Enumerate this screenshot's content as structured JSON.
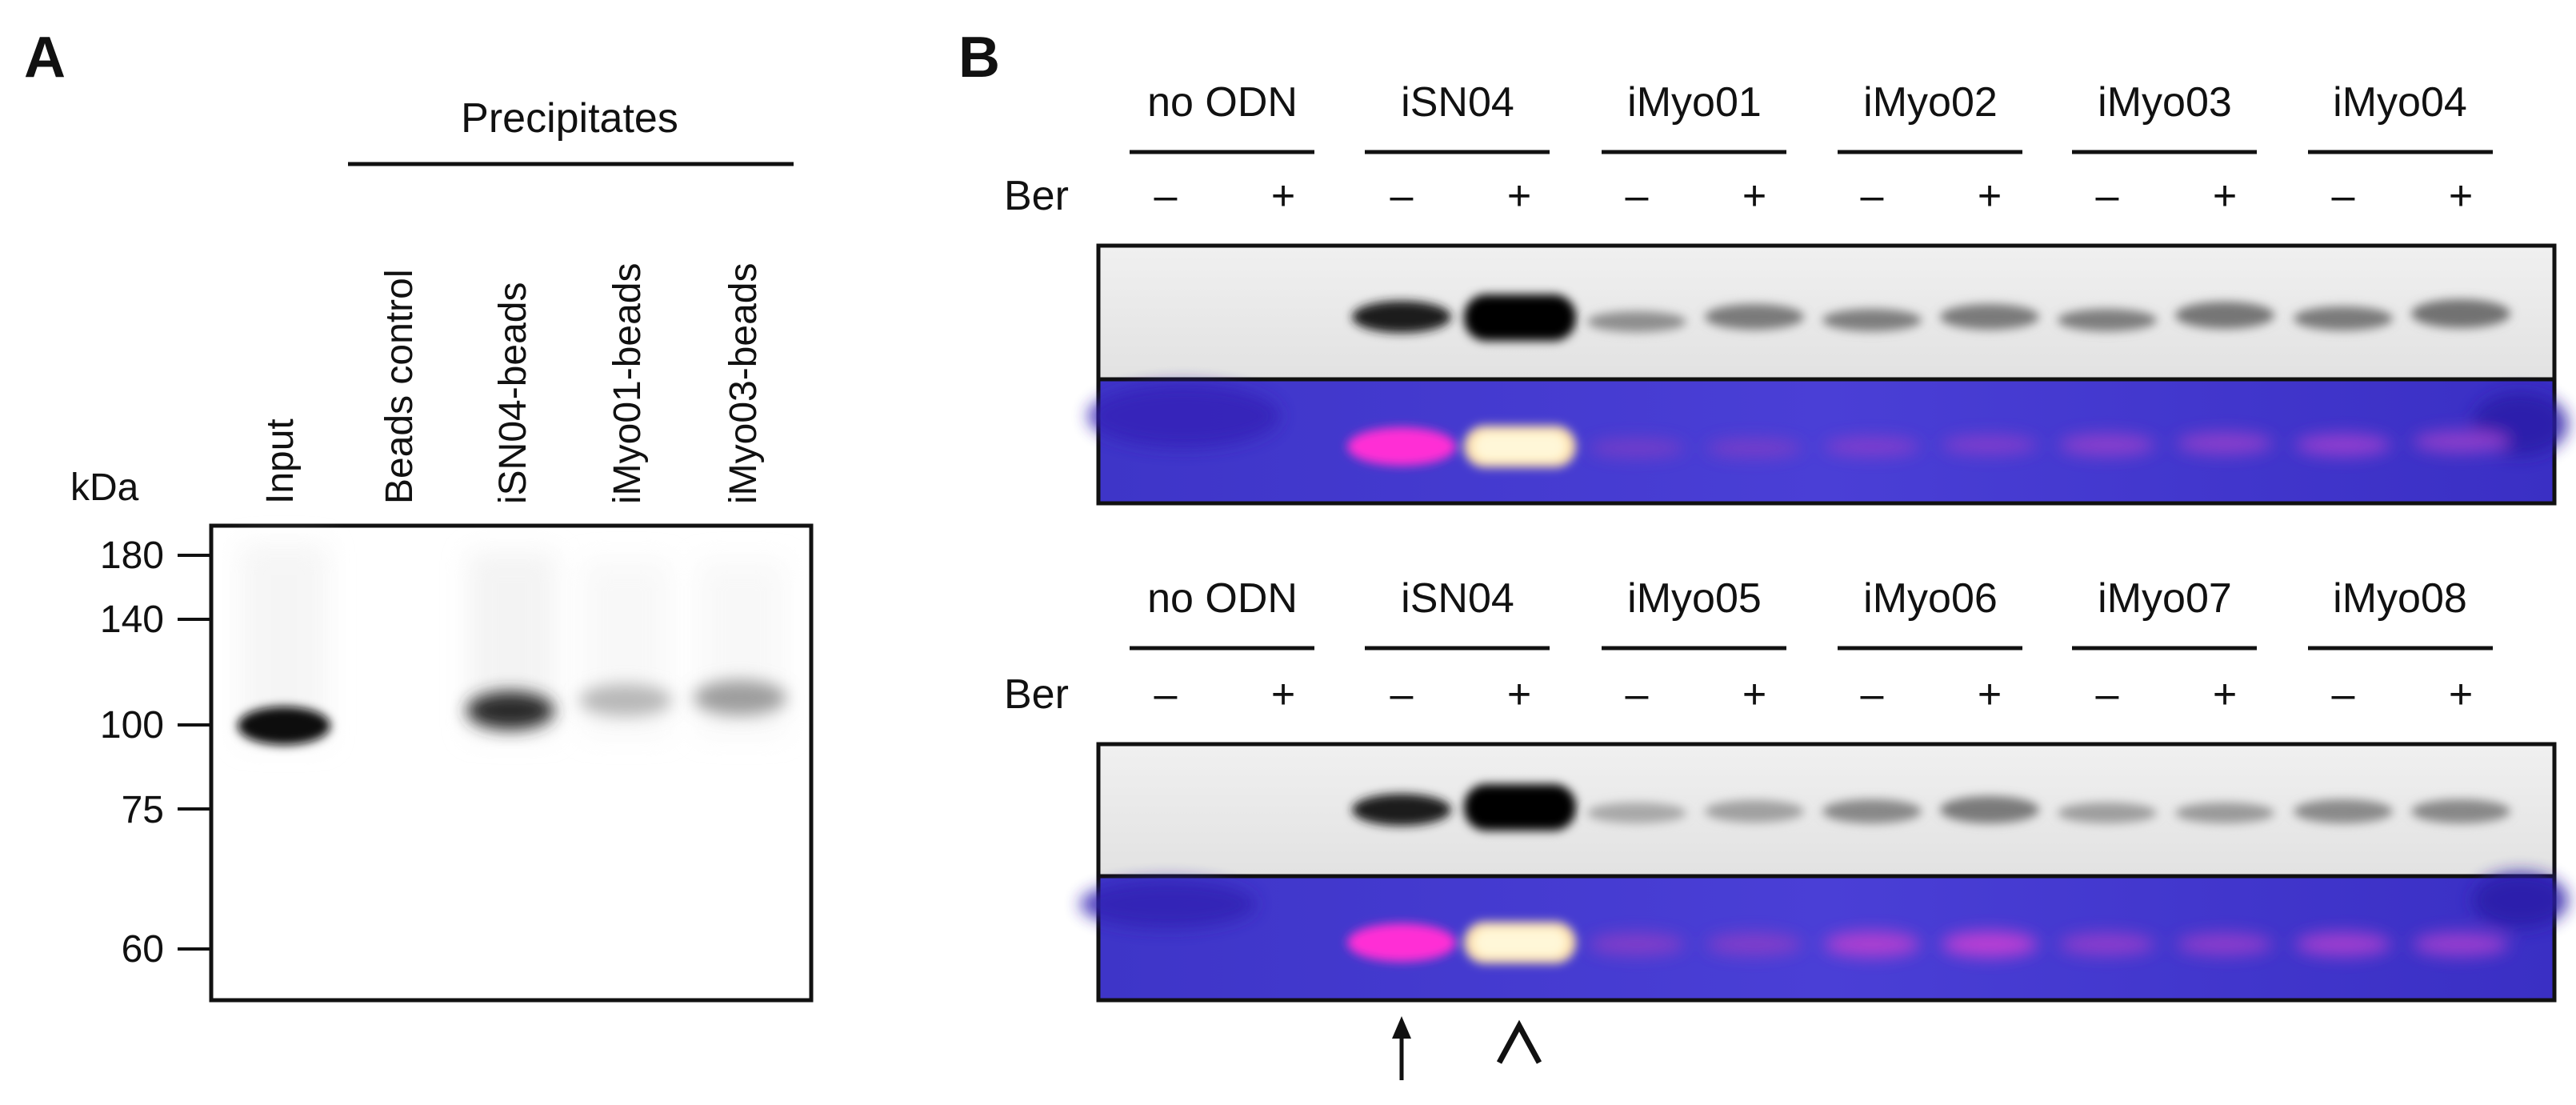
{
  "panel_a": {
    "letter": "A",
    "precipitates_label": "Precipitates",
    "unit_label": "kDa",
    "lanes": [
      "Input",
      "Beads control",
      "iSN04-beads",
      "iMyo01-beads",
      "iMyo03-beads"
    ],
    "markers": [
      "180",
      "140",
      "100",
      "75",
      "60"
    ]
  },
  "panel_b": {
    "letter": "B",
    "treatment_label": "Ber",
    "minus": "–",
    "plus": "+",
    "top_groups": [
      "no ODN",
      "iSN04",
      "iMyo01",
      "iMyo02",
      "iMyo03",
      "iMyo04"
    ],
    "bottom_groups": [
      "no ODN",
      "iSN04",
      "iMyo05",
      "iMyo06",
      "iMyo07",
      "iMyo08"
    ],
    "arrow": "↑",
    "arrowhead": "^"
  },
  "colors": {
    "text": "#111111",
    "gel_background": "#e8e8e8",
    "band_dark": "#0a0a0a",
    "stain_background": "#3a2fd0",
    "stain_magenta": "#ff2fd5",
    "stain_bright": "#fff6c8"
  }
}
